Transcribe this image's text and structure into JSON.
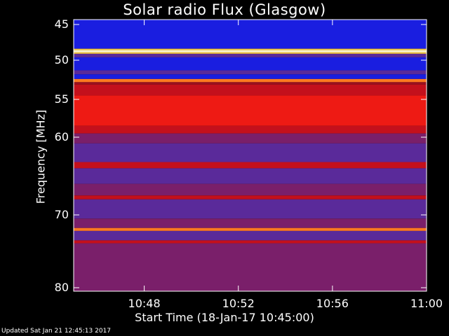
{
  "chart_data": {
    "type": "heatmap",
    "title": "Solar radio Flux (Glasgow)",
    "xlabel": "Start Time (18-Jan-17 10:45:00)",
    "ylabel": "Frequency [MHz]",
    "x_ticks": [
      "10:48",
      "10:52",
      "10:56",
      "11:00"
    ],
    "x_tick_minutes": [
      3,
      7,
      11,
      15
    ],
    "xlim_minutes": [
      0,
      15
    ],
    "y_ticks": [
      45,
      50,
      55,
      60,
      70,
      80
    ],
    "ylim": [
      45,
      80
    ],
    "y_axis_inverted": true,
    "bands": [
      {
        "from": 44.6,
        "to": 48.4,
        "level": "blue"
      },
      {
        "from": 48.4,
        "to": 48.6,
        "level": "yellow"
      },
      {
        "from": 48.6,
        "to": 48.9,
        "level": "white"
      },
      {
        "from": 48.9,
        "to": 49.1,
        "level": "yellow"
      },
      {
        "from": 49.1,
        "to": 49.6,
        "level": "purple"
      },
      {
        "from": 49.6,
        "to": 51.3,
        "level": "blue"
      },
      {
        "from": 51.3,
        "to": 51.8,
        "level": "purple"
      },
      {
        "from": 51.8,
        "to": 52.4,
        "level": "blue"
      },
      {
        "from": 52.4,
        "to": 52.8,
        "level": "orange"
      },
      {
        "from": 52.8,
        "to": 53.1,
        "level": "red-dark"
      },
      {
        "from": 53.1,
        "to": 54.5,
        "level": "red"
      },
      {
        "from": 54.5,
        "to": 58.5,
        "level": "red-bright"
      },
      {
        "from": 58.5,
        "to": 59.5,
        "level": "red"
      },
      {
        "from": 59.5,
        "to": 60.8,
        "level": "purple-red"
      },
      {
        "from": 60.8,
        "to": 63.2,
        "level": "purple"
      },
      {
        "from": 63.2,
        "to": 64.0,
        "level": "red"
      },
      {
        "from": 64.0,
        "to": 66.0,
        "level": "purple"
      },
      {
        "from": 66.0,
        "to": 67.5,
        "level": "purple-red"
      },
      {
        "from": 67.5,
        "to": 68.0,
        "level": "red"
      },
      {
        "from": 68.0,
        "to": 70.5,
        "level": "purple"
      },
      {
        "from": 70.5,
        "to": 71.8,
        "level": "purple-red"
      },
      {
        "from": 71.8,
        "to": 72.2,
        "level": "orange"
      },
      {
        "from": 72.2,
        "to": 73.5,
        "level": "purple"
      },
      {
        "from": 73.5,
        "to": 73.9,
        "level": "red"
      },
      {
        "from": 73.9,
        "to": 80.5,
        "level": "purple-red"
      }
    ]
  },
  "footer": "Updated Sat Jan 21 12:45:13 2017"
}
